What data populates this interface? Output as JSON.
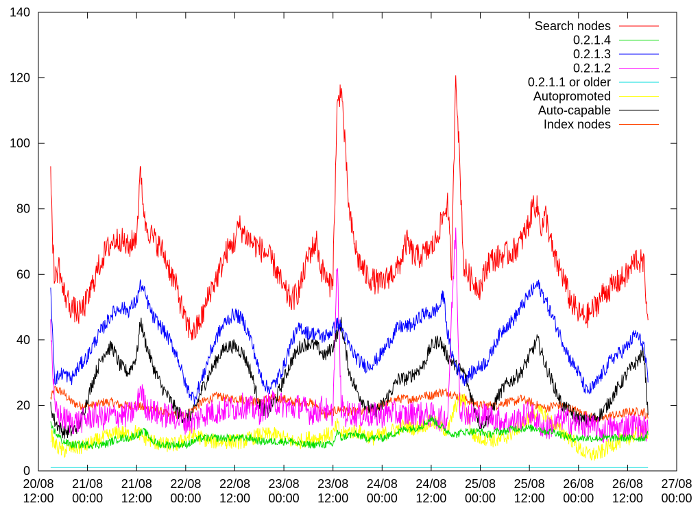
{
  "chart_data": {
    "type": "line",
    "title": "",
    "xlabel": "",
    "ylabel": "",
    "ylim": [
      0,
      140
    ],
    "y_ticks": [
      0,
      20,
      40,
      60,
      80,
      100,
      120,
      140
    ],
    "x_ticks": [
      {
        "value": 0,
        "line1": "20/08",
        "line2": "12:00"
      },
      {
        "value": 12,
        "line1": "21/08",
        "line2": "00:00"
      },
      {
        "value": 24,
        "line1": "21/08",
        "line2": "12:00"
      },
      {
        "value": 36,
        "line1": "22/08",
        "line2": "00:00"
      },
      {
        "value": 48,
        "line1": "22/08",
        "line2": "12:00"
      },
      {
        "value": 60,
        "line1": "23/08",
        "line2": "00:00"
      },
      {
        "value": 72,
        "line1": "23/08",
        "line2": "12:00"
      },
      {
        "value": 84,
        "line1": "24/08",
        "line2": "00:00"
      },
      {
        "value": 96,
        "line1": "24/08",
        "line2": "12:00"
      },
      {
        "value": 108,
        "line1": "25/08",
        "line2": "00:00"
      },
      {
        "value": 120,
        "line1": "25/08",
        "line2": "12:00"
      },
      {
        "value": 132,
        "line1": "26/08",
        "line2": "00:00"
      },
      {
        "value": 144,
        "line1": "26/08",
        "line2": "12:00"
      },
      {
        "value": 156,
        "line1": "27/08",
        "line2": "00:00"
      }
    ],
    "x_range": [
      0,
      156
    ],
    "x_units": "hours after 20/08 12:00",
    "legend_position": "top-right",
    "grid": false,
    "series": [
      {
        "name": "Search nodes",
        "color": "#ff0000",
        "x": [
          3,
          3.5,
          4,
          5,
          6,
          8,
          10,
          12,
          14,
          16,
          18,
          20,
          22,
          24,
          25,
          26,
          28,
          30,
          32,
          34,
          35,
          36,
          38,
          40,
          42,
          44,
          46,
          48,
          49,
          50,
          52,
          54,
          56,
          58,
          60,
          62,
          64,
          66,
          68,
          69,
          70,
          71,
          72,
          73,
          74,
          76,
          78,
          80,
          82,
          84,
          86,
          88,
          90,
          92,
          94,
          96,
          97,
          98,
          100,
          101,
          102,
          104,
          106,
          108,
          110,
          112,
          114,
          116,
          118,
          120,
          121,
          122,
          123,
          124,
          126,
          128,
          130,
          132,
          134,
          136,
          138,
          140,
          142,
          144,
          146,
          148,
          149
        ],
        "y": [
          94,
          70,
          58,
          63,
          55,
          50,
          48,
          52,
          60,
          66,
          70,
          71,
          68,
          72,
          92,
          76,
          71,
          68,
          62,
          55,
          50,
          45,
          42,
          47,
          55,
          60,
          67,
          70,
          75,
          73,
          70,
          68,
          66,
          62,
          55,
          52,
          56,
          66,
          70,
          62,
          60,
          56,
          60,
          110,
          118,
          78,
          65,
          60,
          58,
          57,
          60,
          62,
          70,
          65,
          66,
          68,
          70,
          74,
          82,
          60,
          123,
          62,
          58,
          56,
          64,
          65,
          66,
          67,
          70,
          76,
          82,
          80,
          74,
          78,
          65,
          60,
          52,
          48,
          47,
          50,
          54,
          56,
          58,
          60,
          65,
          63,
          46
        ]
      },
      {
        "name": "0.2.1.4",
        "color": "#00dd00",
        "x": [
          3,
          4,
          6,
          8,
          10,
          12,
          14,
          16,
          18,
          20,
          22,
          24,
          26,
          28,
          30,
          32,
          34,
          36,
          38,
          40,
          42,
          44,
          46,
          48,
          50,
          52,
          54,
          56,
          58,
          60,
          62,
          64,
          66,
          68,
          70,
          72,
          73,
          74,
          76,
          78,
          80,
          82,
          84,
          86,
          88,
          90,
          92,
          94,
          96,
          98,
          100,
          102,
          104,
          106,
          108,
          110,
          112,
          114,
          116,
          118,
          120,
          122,
          124,
          126,
          128,
          130,
          132,
          134,
          136,
          138,
          140,
          142,
          144,
          146,
          148,
          149
        ],
        "y": [
          14,
          12,
          9,
          8,
          8,
          8,
          8,
          8,
          9,
          10,
          10,
          11,
          12,
          9,
          8,
          8,
          8,
          8,
          9,
          10,
          10,
          10,
          10,
          10,
          10,
          10,
          9,
          9,
          9,
          9,
          9,
          8,
          8,
          8,
          8,
          8,
          12,
          10,
          11,
          11,
          10,
          10,
          10,
          11,
          12,
          13,
          13,
          14,
          16,
          14,
          12,
          11,
          12,
          12,
          12,
          11,
          12,
          12,
          13,
          13,
          13,
          13,
          12,
          12,
          11,
          10,
          10,
          10,
          10,
          10,
          10,
          10,
          10,
          10,
          10,
          11
        ]
      },
      {
        "name": "0.2.1.3",
        "color": "#0000ff",
        "x": [
          3,
          4,
          6,
          8,
          10,
          12,
          14,
          16,
          18,
          20,
          22,
          24,
          25,
          26,
          28,
          30,
          32,
          34,
          36,
          38,
          40,
          42,
          44,
          46,
          48,
          49,
          50,
          52,
          54,
          56,
          58,
          60,
          62,
          64,
          66,
          68,
          69,
          70,
          72,
          73,
          74,
          76,
          78,
          80,
          82,
          84,
          86,
          88,
          90,
          92,
          94,
          96,
          98,
          99,
          100,
          101,
          102,
          104,
          106,
          108,
          110,
          112,
          114,
          116,
          118,
          120,
          122,
          124,
          126,
          128,
          130,
          132,
          134,
          136,
          138,
          140,
          142,
          144,
          146,
          148,
          149
        ],
        "y": [
          55,
          28,
          30,
          28,
          32,
          35,
          40,
          44,
          48,
          50,
          49,
          52,
          57,
          54,
          47,
          44,
          40,
          35,
          26,
          22,
          28,
          36,
          42,
          46,
          48,
          47,
          46,
          40,
          30,
          25,
          27,
          32,
          40,
          44,
          42,
          42,
          41,
          41,
          43,
          45,
          44,
          38,
          34,
          32,
          33,
          36,
          40,
          44,
          44,
          45,
          48,
          48,
          50,
          54,
          42,
          36,
          32,
          28,
          30,
          32,
          34,
          40,
          44,
          46,
          50,
          54,
          57,
          52,
          46,
          40,
          34,
          30,
          24,
          26,
          30,
          34,
          36,
          38,
          42,
          38,
          27
        ]
      },
      {
        "name": "0.2.1.2",
        "color": "#ff00ff",
        "x": [
          3,
          4,
          6,
          8,
          10,
          12,
          14,
          16,
          18,
          20,
          22,
          24,
          25,
          26,
          28,
          30,
          32,
          34,
          36,
          38,
          40,
          42,
          44,
          46,
          48,
          50,
          52,
          54,
          56,
          58,
          60,
          62,
          64,
          66,
          68,
          70,
          71,
          72,
          73,
          74,
          75,
          76,
          78,
          80,
          82,
          84,
          86,
          88,
          90,
          92,
          94,
          96,
          98,
          100,
          101,
          102,
          103,
          104,
          106,
          108,
          110,
          112,
          114,
          116,
          118,
          120,
          122,
          124,
          126,
          128,
          130,
          132,
          134,
          136,
          138,
          140,
          142,
          144,
          146,
          148,
          149
        ],
        "y": [
          45,
          18,
          16,
          15,
          15,
          16,
          17,
          16,
          17,
          17,
          17,
          19,
          26,
          20,
          18,
          17,
          17,
          16,
          15,
          15,
          17,
          18,
          18,
          19,
          19,
          20,
          19,
          18,
          20,
          21,
          20,
          19,
          20,
          18,
          18,
          20,
          16,
          18,
          64,
          20,
          17,
          18,
          17,
          17,
          17,
          17,
          18,
          17,
          17,
          18,
          17,
          17,
          16,
          16,
          48,
          74,
          20,
          18,
          17,
          17,
          17,
          16,
          15,
          15,
          16,
          18,
          15,
          13,
          14,
          16,
          15,
          14,
          14,
          13,
          12,
          13,
          13,
          14,
          14,
          13,
          12
        ]
      },
      {
        "name": "0.2.1.1 or older",
        "color": "#00dddd",
        "x": [
          3,
          149
        ],
        "y": [
          1,
          1
        ]
      },
      {
        "name": "Autopromoted",
        "color": "#ffff00",
        "x": [
          3,
          4,
          6,
          8,
          10,
          12,
          14,
          16,
          18,
          20,
          22,
          24,
          26,
          28,
          30,
          32,
          34,
          36,
          38,
          40,
          42,
          44,
          46,
          48,
          50,
          52,
          54,
          56,
          58,
          60,
          62,
          64,
          66,
          68,
          70,
          72,
          73,
          74,
          76,
          78,
          80,
          82,
          84,
          86,
          88,
          90,
          92,
          94,
          96,
          98,
          100,
          102,
          104,
          106,
          108,
          110,
          112,
          114,
          116,
          118,
          120,
          122,
          124,
          126,
          128,
          130,
          132,
          134,
          136,
          138,
          140,
          142,
          144,
          146,
          148,
          149
        ],
        "y": [
          11,
          8,
          6,
          7,
          7,
          8,
          9,
          10,
          11,
          12,
          11,
          12,
          10,
          9,
          8,
          8,
          8,
          10,
          11,
          10,
          9,
          9,
          9,
          9,
          9,
          10,
          11,
          11,
          11,
          10,
          9,
          9,
          10,
          10,
          11,
          11,
          14,
          11,
          12,
          12,
          11,
          10,
          11,
          12,
          13,
          14,
          13,
          14,
          15,
          14,
          12,
          20,
          22,
          11,
          10,
          10,
          9,
          10,
          12,
          14,
          16,
          18,
          17,
          14,
          12,
          10,
          7,
          5,
          5,
          6,
          8,
          9,
          10,
          11,
          12,
          12
        ]
      },
      {
        "name": "Auto-capable",
        "color": "#000000",
        "x": [
          3,
          4,
          6,
          8,
          10,
          12,
          14,
          16,
          18,
          20,
          22,
          24,
          25,
          26,
          28,
          30,
          32,
          34,
          36,
          38,
          40,
          42,
          44,
          46,
          48,
          50,
          52,
          54,
          56,
          58,
          60,
          62,
          64,
          66,
          68,
          70,
          72,
          73,
          74,
          76,
          78,
          80,
          82,
          84,
          86,
          88,
          90,
          92,
          94,
          96,
          98,
          100,
          102,
          104,
          106,
          108,
          110,
          112,
          114,
          116,
          118,
          120,
          122,
          124,
          126,
          128,
          130,
          132,
          134,
          136,
          138,
          140,
          142,
          144,
          146,
          148,
          149
        ],
        "y": [
          20,
          15,
          12,
          12,
          14,
          22,
          30,
          36,
          38,
          32,
          30,
          35,
          46,
          40,
          32,
          26,
          22,
          18,
          16,
          18,
          25,
          30,
          35,
          38,
          38,
          36,
          30,
          20,
          18,
          22,
          28,
          34,
          38,
          39,
          38,
          35,
          38,
          42,
          45,
          30,
          24,
          20,
          18,
          20,
          24,
          28,
          28,
          30,
          32,
          38,
          40,
          35,
          32,
          30,
          22,
          14,
          16,
          22,
          26,
          28,
          30,
          35,
          40,
          32,
          26,
          20,
          18,
          16,
          15,
          16,
          18,
          22,
          26,
          30,
          33,
          36,
          17
        ]
      },
      {
        "name": "Index nodes",
        "color": "#ff4400",
        "x": [
          3,
          4,
          6,
          8,
          10,
          12,
          14,
          16,
          18,
          20,
          22,
          24,
          26,
          28,
          30,
          32,
          34,
          36,
          38,
          40,
          42,
          44,
          46,
          48,
          50,
          52,
          54,
          56,
          58,
          60,
          62,
          64,
          66,
          68,
          70,
          72,
          74,
          76,
          78,
          80,
          82,
          84,
          86,
          88,
          90,
          92,
          94,
          96,
          98,
          100,
          102,
          104,
          106,
          108,
          110,
          112,
          114,
          116,
          118,
          120,
          122,
          124,
          126,
          128,
          130,
          132,
          134,
          136,
          138,
          140,
          142,
          144,
          146,
          148,
          149
        ],
        "y": [
          22,
          25,
          24,
          21,
          20,
          20,
          20,
          21,
          21,
          20,
          20,
          20,
          19,
          19,
          18,
          17,
          17,
          17,
          19,
          21,
          22,
          23,
          22,
          22,
          22,
          21,
          21,
          22,
          22,
          22,
          21,
          21,
          21,
          20,
          17,
          18,
          19,
          18,
          18,
          18,
          19,
          20,
          21,
          22,
          22,
          22,
          23,
          23,
          24,
          24,
          23,
          22,
          21,
          20,
          20,
          20,
          21,
          21,
          22,
          21,
          20,
          19,
          20,
          20,
          19,
          18,
          17,
          16,
          16,
          17,
          17,
          18,
          18,
          18,
          16
        ]
      }
    ]
  }
}
